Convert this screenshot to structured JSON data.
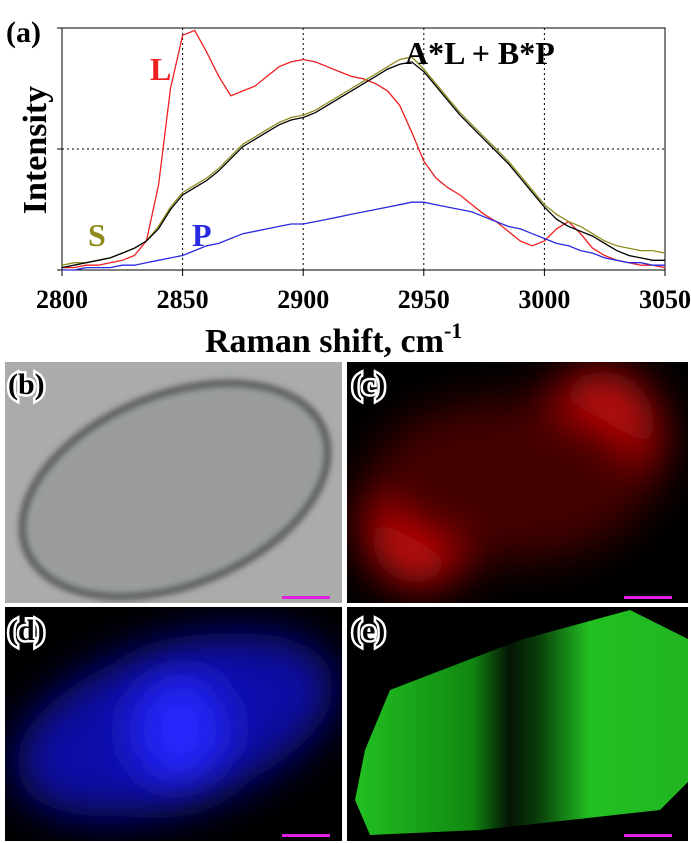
{
  "chart_data": {
    "type": "line",
    "panel_label": "(a)",
    "xlabel": "Raman shift, cm",
    "xlabel_sup": "-1",
    "ylabel": "Intensity",
    "x": [
      2800,
      2805,
      2810,
      2815,
      2820,
      2825,
      2830,
      2835,
      2840,
      2845,
      2850,
      2855,
      2860,
      2865,
      2870,
      2875,
      2880,
      2885,
      2890,
      2895,
      2900,
      2905,
      2910,
      2915,
      2920,
      2925,
      2930,
      2935,
      2940,
      2945,
      2950,
      2955,
      2960,
      2965,
      2970,
      2975,
      2980,
      2985,
      2990,
      2995,
      3000,
      3005,
      3010,
      3015,
      3020,
      3025,
      3030,
      3035,
      3040,
      3045,
      3050
    ],
    "series": [
      {
        "name": "L",
        "color": "#ee2020",
        "values": [
          0.01,
          0.01,
          0.02,
          0.02,
          0.03,
          0.04,
          0.06,
          0.12,
          0.35,
          0.75,
          0.97,
          0.99,
          0.9,
          0.8,
          0.72,
          0.74,
          0.76,
          0.8,
          0.84,
          0.86,
          0.87,
          0.86,
          0.84,
          0.82,
          0.8,
          0.79,
          0.77,
          0.74,
          0.68,
          0.57,
          0.45,
          0.38,
          0.34,
          0.31,
          0.27,
          0.23,
          0.2,
          0.16,
          0.12,
          0.1,
          0.12,
          0.17,
          0.2,
          0.15,
          0.09,
          0.06,
          0.04,
          0.03,
          0.02,
          0.02,
          0.01
        ]
      },
      {
        "name": "P",
        "color": "#2a2ae0",
        "values": [
          0,
          0,
          0.01,
          0.01,
          0.01,
          0.02,
          0.02,
          0.03,
          0.04,
          0.05,
          0.06,
          0.08,
          0.1,
          0.11,
          0.13,
          0.15,
          0.16,
          0.17,
          0.18,
          0.19,
          0.19,
          0.2,
          0.21,
          0.22,
          0.23,
          0.24,
          0.25,
          0.26,
          0.27,
          0.28,
          0.28,
          0.27,
          0.26,
          0.25,
          0.24,
          0.22,
          0.2,
          0.18,
          0.17,
          0.15,
          0.13,
          0.11,
          0.1,
          0.08,
          0.07,
          0.05,
          0.04,
          0.03,
          0.03,
          0.02,
          0.02
        ]
      },
      {
        "name": "S",
        "color": "#8f8a1c",
        "values": [
          0.02,
          0.03,
          0.03,
          0.04,
          0.05,
          0.07,
          0.09,
          0.12,
          0.18,
          0.26,
          0.32,
          0.35,
          0.38,
          0.42,
          0.47,
          0.52,
          0.55,
          0.58,
          0.61,
          0.63,
          0.64,
          0.66,
          0.69,
          0.72,
          0.75,
          0.78,
          0.81,
          0.84,
          0.87,
          0.88,
          0.83,
          0.77,
          0.71,
          0.65,
          0.6,
          0.55,
          0.5,
          0.45,
          0.39,
          0.33,
          0.27,
          0.23,
          0.2,
          0.18,
          0.15,
          0.12,
          0.1,
          0.09,
          0.08,
          0.08,
          0.07
        ]
      },
      {
        "name": "A*L + B*P",
        "color": "#000000",
        "values": [
          0.01,
          0.02,
          0.03,
          0.04,
          0.05,
          0.07,
          0.09,
          0.12,
          0.17,
          0.25,
          0.31,
          0.34,
          0.37,
          0.41,
          0.46,
          0.51,
          0.54,
          0.57,
          0.6,
          0.62,
          0.63,
          0.65,
          0.68,
          0.71,
          0.74,
          0.77,
          0.8,
          0.83,
          0.85,
          0.86,
          0.82,
          0.76,
          0.7,
          0.64,
          0.59,
          0.54,
          0.49,
          0.44,
          0.38,
          0.32,
          0.26,
          0.21,
          0.18,
          0.16,
          0.14,
          0.11,
          0.08,
          0.06,
          0.05,
          0.04,
          0.04
        ]
      }
    ],
    "xlim": [
      2800,
      3050
    ],
    "xticks": [
      2800,
      2850,
      2900,
      2950,
      3000,
      3050
    ],
    "ylim": [
      0,
      1
    ],
    "yticks": [
      0,
      0.5,
      1
    ],
    "grid": true
  },
  "panels": [
    {
      "label": "(b)"
    },
    {
      "label": "(c)"
    },
    {
      "label": "(d)"
    },
    {
      "label": "(e)"
    }
  ]
}
